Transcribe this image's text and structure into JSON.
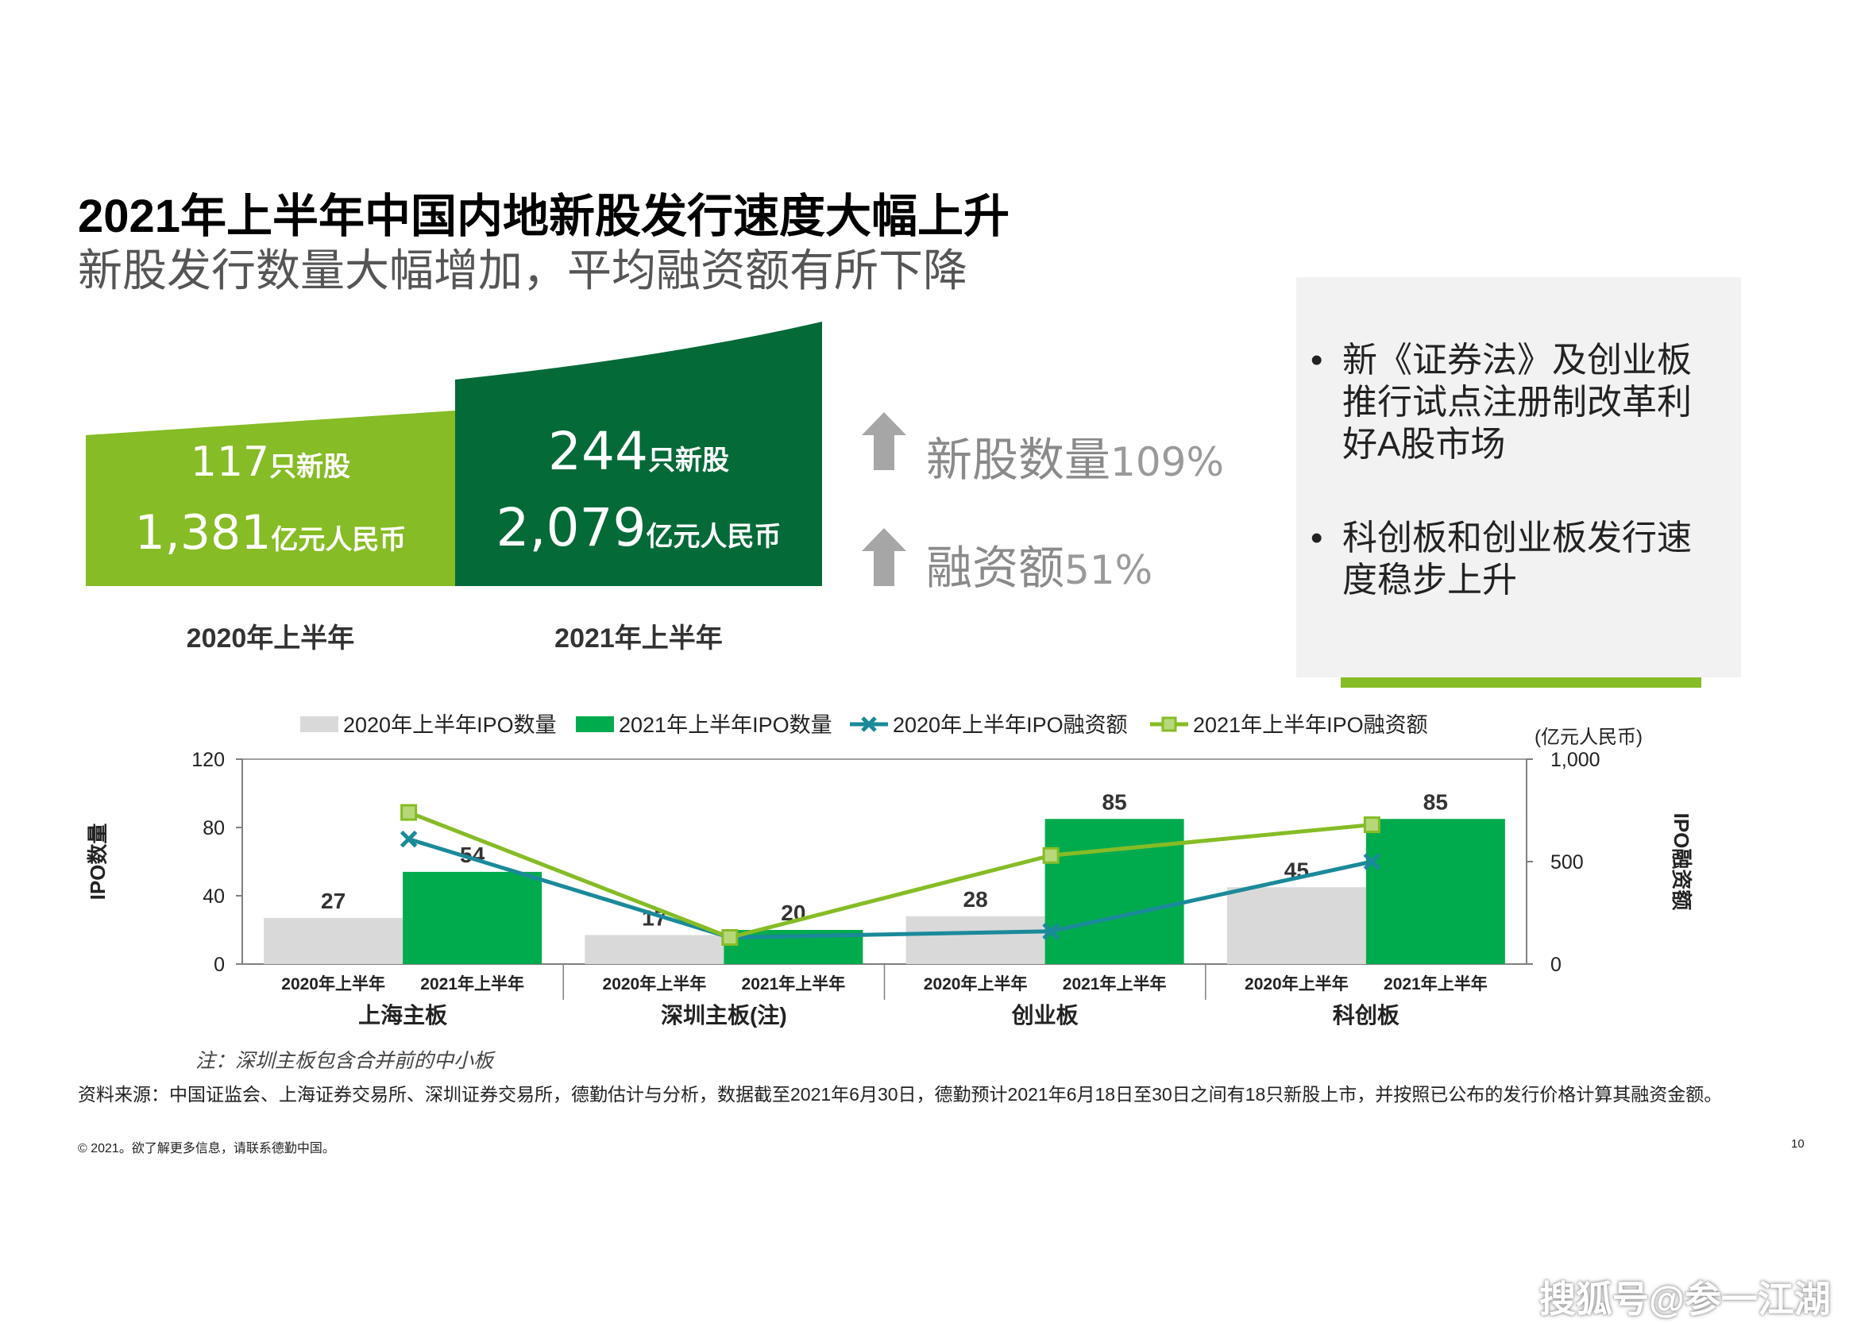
{
  "title": "2021年上半年中国内地新股发行速度大幅上升",
  "subtitle": "新股发行数量大幅增加，平均融资额有所下降",
  "summary": {
    "h1_2020": {
      "ipo_count": "117",
      "count_unit": "只新股",
      "amount": "1,381",
      "amount_unit": "亿元人民币",
      "label": "2020年上半年",
      "color": "#86bc25"
    },
    "h1_2021": {
      "ipo_count": "244",
      "count_unit": "只新股",
      "amount": "2,079",
      "amount_unit": "亿元人民币",
      "label": "2021年上半年",
      "color": "#046a38"
    },
    "stats": [
      {
        "label": "新股数量",
        "value": "109%",
        "icon": "up-arrow-icon"
      },
      {
        "label": "融资额",
        "value": "51%",
        "icon": "up-arrow-icon"
      }
    ]
  },
  "notes": {
    "bullets": [
      "新《证券法》及创业板推行试点注册制改革利好A股市场",
      "科创板和创业板发行速度稳步上升"
    ],
    "bullet_symbol": "•"
  },
  "chart_data": {
    "type": "bar",
    "categories": [
      "上海主板",
      "深圳主板(注)",
      "创业板",
      "科创板"
    ],
    "sub_labels": [
      "2020年上半年",
      "2021年上半年"
    ],
    "series": [
      {
        "name": "2020年上半年IPO数量",
        "kind": "bar",
        "axis": "left",
        "values": [
          27,
          17,
          28,
          45
        ],
        "color": "#d9d9d9"
      },
      {
        "name": "2021年上半年IPO数量",
        "kind": "bar",
        "axis": "left",
        "values": [
          54,
          20,
          85,
          85
        ],
        "color": "#00ab4e"
      },
      {
        "name": "2020年上半年IPO融资额",
        "kind": "line",
        "axis": "right",
        "values": [
          610,
          130,
          160,
          500
        ],
        "color": "#1a8a9a",
        "marker": "x"
      },
      {
        "name": "2021年上半年IPO融资额",
        "kind": "line",
        "axis": "right",
        "values": [
          740,
          130,
          530,
          680
        ],
        "color": "#86bc25",
        "marker": "square"
      }
    ],
    "ylabel_left": "IPO数量",
    "ylabel_right": "IPO融资额",
    "unit_right": "(亿元人民币)",
    "ylim_left": [
      0,
      120
    ],
    "yticks_left": [
      "0",
      "40",
      "80",
      "120"
    ],
    "ylim_right": [
      0,
      1000
    ],
    "yticks_right": [
      "0",
      "500",
      "1,000"
    ],
    "legend_position": "top",
    "grid": false
  },
  "footnote": "注：深圳主板包含合并前的中小板",
  "source": "资料来源：中国证监会、上海证券交易所、深圳证券交易所，德勤估计与分析，数据截至2021年6月30日，德勤预计2021年6月18日至30日之间有18只新股上市，并按照已公布的发行价格计算其融资金额。",
  "copyright": "© 2021。欲了解更多信息，请联系德勤中国。",
  "page_number": "10",
  "watermark": "搜狐号@参一江湖"
}
